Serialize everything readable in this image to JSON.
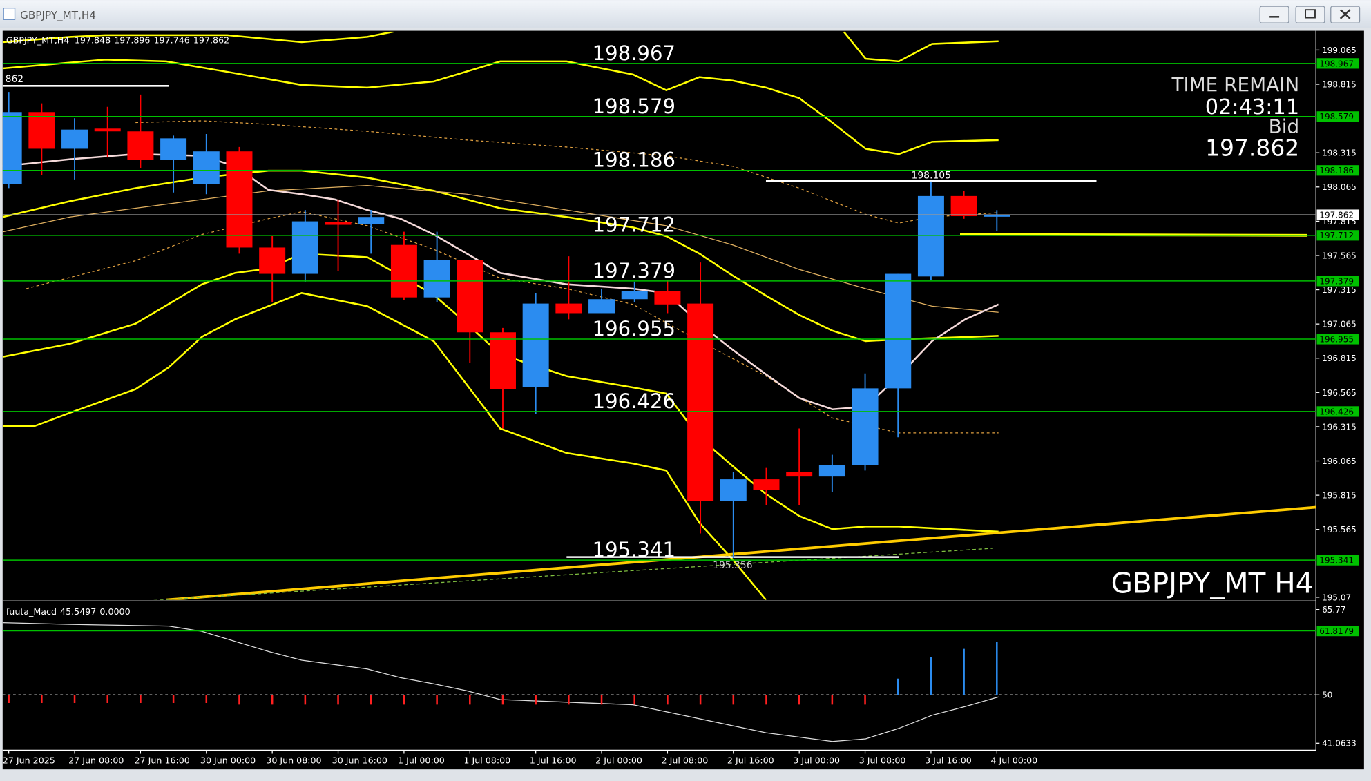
{
  "chart_data": {
    "type": "candlestick",
    "title": "GBPJPY_MT,H4",
    "watermark": "GBPJPY_MT H4",
    "time_remain_label": "TIME REMAIN",
    "time_remain": "02:43:11",
    "bid_label": "Bid",
    "left_label": "862",
    "categories": [
      "27 Jun 2025",
      null,
      "27 Jun 08:00",
      null,
      "27 Jun 16:00",
      null,
      "30 Jun 00:00",
      null,
      "30 Jun 08:00",
      null,
      "30 Jun 16:00",
      null,
      "1 Jul 00:00",
      null,
      "1 Jul 08:00",
      null,
      "1 Jul 16:00",
      null,
      "2 Jul 00:00",
      null,
      "2 Jul 08:00",
      null,
      "2 Jul 16:00",
      null,
      "3 Jul 00:00",
      null,
      "3 Jul 08:00",
      null,
      "3 Jul 16:00",
      null,
      "4 Jul 00:00"
    ],
    "open": [
      198.089,
      198.612,
      198.344,
      198.491,
      198.471,
      198.261,
      198.089,
      198.325,
      197.623,
      197.431,
      197.808,
      197.795,
      197.642,
      197.259,
      197.533,
      197.004,
      196.602,
      197.214,
      197.144,
      197.246,
      197.304,
      197.214,
      195.772,
      195.931,
      195.983,
      195.951,
      196.034,
      196.595,
      197.412,
      197.999,
      197.848
    ],
    "high": [
      198.759,
      198.676,
      198.567,
      198.65,
      198.74,
      198.44,
      198.452,
      198.357,
      197.706,
      197.897,
      197.974,
      197.897,
      197.738,
      197.738,
      197.533,
      197.036,
      197.291,
      197.559,
      197.323,
      197.374,
      197.387,
      197.514,
      195.983,
      196.014,
      196.302,
      196.11,
      196.704,
      197.431,
      198.105,
      198.038,
      197.896
    ],
    "low": [
      198.057,
      198.152,
      198.12,
      198.28,
      198.203,
      198.025,
      198.012,
      197.578,
      197.227,
      197.374,
      197.45,
      197.578,
      197.24,
      197.227,
      196.78,
      196.302,
      196.41,
      197.099,
      197.144,
      197.227,
      197.144,
      195.536,
      195.356,
      195.74,
      195.74,
      195.836,
      195.995,
      196.238,
      197.387,
      197.833,
      197.746
    ],
    "close": [
      198.612,
      198.344,
      198.484,
      198.471,
      198.261,
      198.42,
      198.325,
      197.623,
      197.431,
      197.814,
      197.789,
      197.846,
      197.259,
      197.533,
      197.004,
      196.589,
      197.214,
      197.144,
      197.246,
      197.304,
      197.208,
      195.772,
      195.931,
      195.855,
      195.951,
      196.034,
      196.595,
      197.431,
      197.999,
      197.852,
      197.862
    ],
    "ylim": [
      195.07,
      199.065
    ],
    "yticks": [
      199.065,
      198.815,
      198.315,
      198.065,
      197.815,
      197.565,
      197.315,
      197.065,
      196.815,
      196.565,
      196.315,
      196.065,
      195.815,
      195.565,
      195.07
    ],
    "levels": [
      198.967,
      198.579,
      198.186,
      197.712,
      197.379,
      196.955,
      196.426,
      195.341
    ],
    "indicator": {
      "name": "fuuta_Macd",
      "readout": [
        45.5497,
        {
          "value": 0,
          "label": "0.0000"
        }
      ],
      "ylim": [
        41.0633,
        65.77
      ],
      "yticks": [
        65.77,
        50,
        41.0633
      ],
      "level": 61.8179,
      "baseline": 50,
      "histogram": [
        -1.5,
        -1.5,
        -1.5,
        -1.5,
        -1.5,
        -1.5,
        -1.5,
        -1.8,
        -1.8,
        -1.8,
        -1.8,
        -1.8,
        -1.8,
        -1.8,
        -1.8,
        -1.8,
        -1.8,
        -1.8,
        -1.8,
        -1.8,
        -1.8,
        -1.8,
        -1.8,
        -1.8,
        -1.8,
        -1.8,
        -1.8,
        3.0,
        7.0,
        8.5,
        9.8
      ]
    }
  }
}
